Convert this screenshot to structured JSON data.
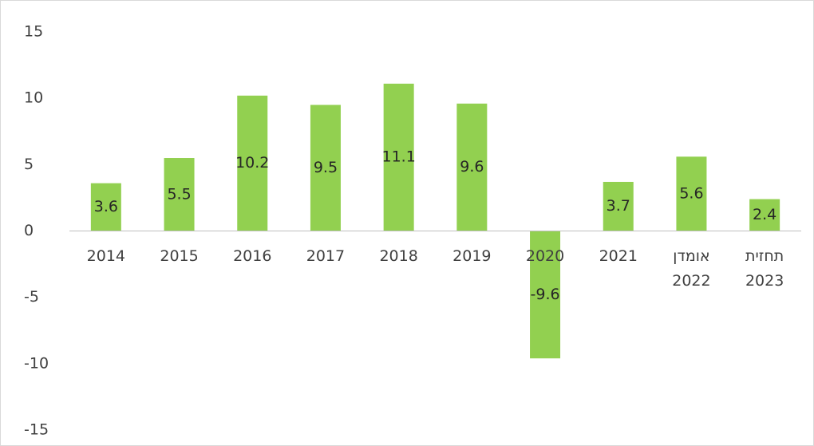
{
  "chart_data": {
    "type": "bar",
    "categories": [
      "2014",
      "2015",
      "2016",
      "2017",
      "2018",
      "2019",
      "2020",
      "2021",
      "אומדן 2022",
      "תחזית 2023"
    ],
    "values": [
      3.6,
      5.5,
      10.2,
      9.5,
      11.1,
      9.6,
      -9.6,
      3.7,
      5.6,
      2.4
    ],
    "color": "#92d050",
    "ylim": [
      -15,
      15
    ],
    "yticks": [
      -15,
      -10,
      -5,
      0,
      5,
      10,
      15
    ],
    "grid": false
  }
}
